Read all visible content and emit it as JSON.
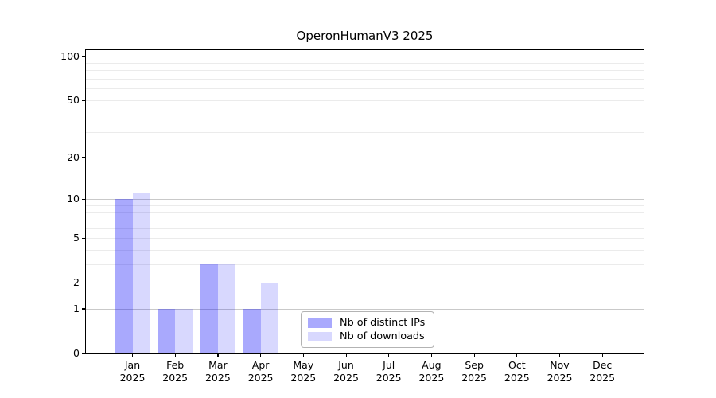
{
  "chart_data": {
    "type": "bar",
    "title": "OperonHumanV3 2025",
    "categories": [
      "Jan 2025",
      "Feb 2025",
      "Mar 2025",
      "Apr 2025",
      "May 2025",
      "Jun 2025",
      "Jul 2025",
      "Aug 2025",
      "Sep 2025",
      "Oct 2025",
      "Nov 2025",
      "Dec 2025"
    ],
    "series": [
      {
        "name": "Nb of distinct IPs",
        "color": "rgba(10,10,248,0.35)",
        "values": [
          10,
          1,
          3,
          1,
          0,
          0,
          0,
          0,
          0,
          0,
          0,
          0
        ]
      },
      {
        "name": "Nb of downloads",
        "color": "rgba(10,10,248,0.16)",
        "values": [
          11,
          1,
          3,
          2,
          0,
          0,
          0,
          0,
          0,
          0,
          0,
          0
        ]
      }
    ],
    "xlabel": "",
    "ylabel": "",
    "yscale": "log1p",
    "ylim": [
      0,
      110
    ],
    "yticks": [
      0,
      1,
      2,
      5,
      10,
      20,
      50,
      100
    ],
    "gridlines": {
      "minor": [
        2,
        3,
        4,
        5,
        6,
        7,
        8,
        9,
        20,
        30,
        40,
        50,
        60,
        70,
        80,
        90
      ],
      "major": [
        1,
        10,
        100
      ],
      "minor_color": "#ebebeb",
      "major_color": "#c9c9c9"
    },
    "legend_position": "inside lower-center",
    "text_color": "#000000",
    "background_color": "#ffffff"
  }
}
